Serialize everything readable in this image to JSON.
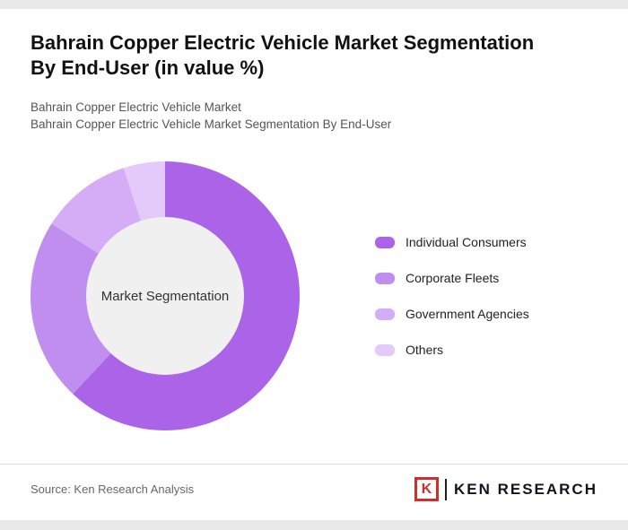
{
  "page": {
    "title_line1": "Bahrain Copper Electric Vehicle Market Segmentation",
    "title_line2": "By End-User (in value %)",
    "subtitle1": "Bahrain Copper Electric Vehicle Market",
    "subtitle2": "Bahrain Copper Electric Vehicle Market Segmentation By End-User",
    "source": "Source: Ken Research Analysis"
  },
  "logo": {
    "mark": "K",
    "text": "KEN RESEARCH"
  },
  "chart_data": {
    "type": "pie",
    "subtype": "donut",
    "title": "Bahrain Copper Electric Vehicle Market Segmentation By End-User (in value %)",
    "center_label": "Market Segmentation",
    "categories": [
      "Individual Consumers",
      "Corporate Fleets",
      "Government Agencies",
      "Others"
    ],
    "values": [
      62,
      22,
      11,
      5
    ],
    "unit": "%",
    "colors": [
      "#ab63e8",
      "#c08eef",
      "#d5adf6",
      "#e4c9fb"
    ],
    "start_angle_deg": 0,
    "direction": "clockwise",
    "legend_position": "right",
    "hole_color": "#f0f0f0"
  }
}
